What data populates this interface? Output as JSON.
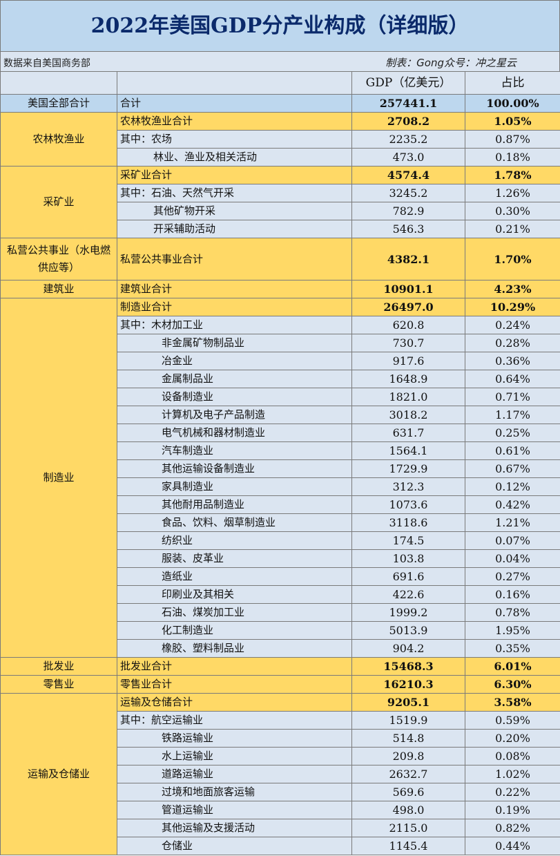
{
  "title": "2022年美国GDP分产业构成（详细版）",
  "source_note": "数据来自美国商务部",
  "credit": "制表：Gong众号：冲之星云",
  "headers": {
    "gdp": "GDP（亿美元）",
    "share": "占比"
  },
  "total": {
    "sector": "美国全部合计",
    "label": "合计",
    "gdp": "257441.1",
    "share": "100.00%"
  },
  "groups": [
    {
      "sector": "农林牧渔业",
      "rows": [
        {
          "label": "农林牧渔业合计",
          "gdp": "2708.2",
          "share": "1.05%",
          "subtotal": true
        },
        {
          "label": "其中：农场",
          "gdp": "2235.2",
          "share": "0.87%"
        },
        {
          "label": "林业、渔业及相关活动",
          "gdp": "473.0",
          "share": "0.18%",
          "indent": true
        }
      ]
    },
    {
      "sector": "采矿业",
      "rows": [
        {
          "label": "采矿业合计",
          "gdp": "4574.4",
          "share": "1.78%",
          "subtotal": true
        },
        {
          "label": "其中：石油、天然气开采",
          "gdp": "3245.2",
          "share": "1.26%"
        },
        {
          "label": "其他矿物开采",
          "gdp": "782.9",
          "share": "0.30%",
          "indent": true
        },
        {
          "label": "开采辅助活动",
          "gdp": "546.3",
          "share": "0.21%",
          "indent": true
        }
      ]
    },
    {
      "sector": "私营公共事业（水电燃供应等）",
      "tall": true,
      "rows": [
        {
          "label": "私营公共事业合计",
          "gdp": "4382.1",
          "share": "1.70%",
          "subtotal": true
        }
      ]
    },
    {
      "sector": "建筑业",
      "rows": [
        {
          "label": "建筑业合计",
          "gdp": "10901.1",
          "share": "4.23%",
          "subtotal": true
        }
      ]
    },
    {
      "sector": "制造业",
      "rows": [
        {
          "label": "制造业合计",
          "gdp": "26497.0",
          "share": "10.29%",
          "subtotal": true
        },
        {
          "label": "其中：木材加工业",
          "gdp": "620.8",
          "share": "0.24%"
        },
        {
          "label": "非金属矿物制品业",
          "gdp": "730.7",
          "share": "0.28%",
          "indent": true,
          "deep": true
        },
        {
          "label": "冶金业",
          "gdp": "917.6",
          "share": "0.36%",
          "indent": true,
          "deep": true
        },
        {
          "label": "金属制品业",
          "gdp": "1648.9",
          "share": "0.64%",
          "indent": true,
          "deep": true
        },
        {
          "label": "设备制造业",
          "gdp": "1821.0",
          "share": "0.71%",
          "indent": true,
          "deep": true
        },
        {
          "label": "计算机及电子产品制造",
          "gdp": "3018.2",
          "share": "1.17%",
          "indent": true,
          "deep": true
        },
        {
          "label": "电气机械和器材制造业",
          "gdp": "631.7",
          "share": "0.25%",
          "indent": true,
          "deep": true
        },
        {
          "label": "汽车制造业",
          "gdp": "1564.1",
          "share": "0.61%",
          "indent": true,
          "deep": true
        },
        {
          "label": "其他运输设备制造业",
          "gdp": "1729.9",
          "share": "0.67%",
          "indent": true,
          "deep": true
        },
        {
          "label": "家具制造业",
          "gdp": "312.3",
          "share": "0.12%",
          "indent": true,
          "deep": true
        },
        {
          "label": "其他耐用品制造业",
          "gdp": "1073.6",
          "share": "0.42%",
          "indent": true,
          "deep": true
        },
        {
          "label": "食品、饮料、烟草制造业",
          "gdp": "3118.6",
          "share": "1.21%",
          "indent": true,
          "deep": true
        },
        {
          "label": "纺织业",
          "gdp": "174.5",
          "share": "0.07%",
          "indent": true,
          "deep": true
        },
        {
          "label": "服装、皮革业",
          "gdp": "103.8",
          "share": "0.04%",
          "indent": true,
          "deep": true
        },
        {
          "label": "造纸业",
          "gdp": "691.6",
          "share": "0.27%",
          "indent": true,
          "deep": true
        },
        {
          "label": "印刷业及其相关",
          "gdp": "422.6",
          "share": "0.16%",
          "indent": true,
          "deep": true
        },
        {
          "label": "石油、煤炭加工业",
          "gdp": "1999.2",
          "share": "0.78%",
          "indent": true,
          "deep": true
        },
        {
          "label": "化工制造业",
          "gdp": "5013.9",
          "share": "1.95%",
          "indent": true,
          "deep": true
        },
        {
          "label": "橡胶、塑料制品业",
          "gdp": "904.2",
          "share": "0.35%",
          "indent": true,
          "deep": true
        }
      ]
    },
    {
      "sector": "批发业",
      "rows": [
        {
          "label": "批发业合计",
          "gdp": "15468.3",
          "share": "6.01%",
          "subtotal": true
        }
      ]
    },
    {
      "sector": "零售业",
      "rows": [
        {
          "label": "零售业合计",
          "gdp": "16210.3",
          "share": "6.30%",
          "subtotal": true
        }
      ]
    },
    {
      "sector": "运输及仓储业",
      "rows": [
        {
          "label": "运输及仓储合计",
          "gdp": "9205.1",
          "share": "3.58%",
          "subtotal": true
        },
        {
          "label": "其中：航空运输业",
          "gdp": "1519.9",
          "share": "0.59%"
        },
        {
          "label": "铁路运输业",
          "gdp": "514.8",
          "share": "0.20%",
          "indent": true,
          "deep": true
        },
        {
          "label": "水上运输业",
          "gdp": "209.8",
          "share": "0.08%",
          "indent": true,
          "deep": true
        },
        {
          "label": "道路运输业",
          "gdp": "2632.7",
          "share": "1.02%",
          "indent": true,
          "deep": true
        },
        {
          "label": "过境和地面旅客运输",
          "gdp": "569.6",
          "share": "0.22%",
          "indent": true,
          "deep": true
        },
        {
          "label": "管道运输业",
          "gdp": "498.0",
          "share": "0.19%",
          "indent": true,
          "deep": true
        },
        {
          "label": "其他运输及支援活动",
          "gdp": "2115.0",
          "share": "0.82%",
          "indent": true,
          "deep": true
        },
        {
          "label": "仓储业",
          "gdp": "1145.4",
          "share": "0.44%",
          "indent": true,
          "deep": true
        }
      ]
    }
  ]
}
